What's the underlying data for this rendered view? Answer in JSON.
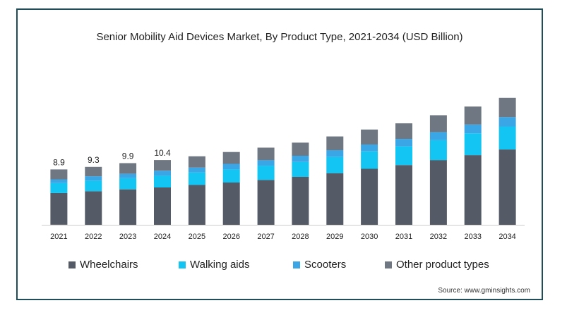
{
  "chart_data": {
    "type": "bar",
    "stacked": true,
    "title": "Senior Mobility Aid Devices Market, By Product Type, 2021-2034 (USD Billion)",
    "xlabel": "",
    "ylabel": "",
    "grid": false,
    "legend_position": "bottom",
    "categories": [
      "2021",
      "2022",
      "2023",
      "2024",
      "2025",
      "2026",
      "2027",
      "2028",
      "2029",
      "2030",
      "2031",
      "2032",
      "2033",
      "2034"
    ],
    "totals_labels": [
      "8.9",
      "9.3",
      "9.9",
      "10.4",
      "",
      "",
      "",
      "",
      "",
      "",
      "",
      "",
      "",
      ""
    ],
    "ylim": [
      0,
      30
    ],
    "series": [
      {
        "name": "Wheelchairs",
        "color": "#555b66",
        "values": [
          5.1,
          5.4,
          5.7,
          6.0,
          6.4,
          6.8,
          7.2,
          7.7,
          8.3,
          9.0,
          9.6,
          10.4,
          11.2,
          12.1
        ]
      },
      {
        "name": "Walking aids",
        "color": "#12c5f2",
        "values": [
          1.6,
          1.7,
          1.8,
          1.9,
          2.0,
          2.1,
          2.3,
          2.4,
          2.6,
          2.8,
          3.0,
          3.2,
          3.5,
          3.7
        ]
      },
      {
        "name": "Scooters",
        "color": "#3aa6e6",
        "values": [
          0.6,
          0.7,
          0.7,
          0.8,
          0.8,
          0.9,
          0.9,
          1.0,
          1.1,
          1.1,
          1.2,
          1.3,
          1.4,
          1.5
        ]
      },
      {
        "name": "Other product types",
        "color": "#6f7782",
        "values": [
          1.6,
          1.5,
          1.7,
          1.7,
          1.8,
          1.9,
          2.0,
          2.1,
          2.2,
          2.4,
          2.5,
          2.7,
          2.9,
          3.1
        ]
      }
    ]
  },
  "source": "Source: www.gminsights.com"
}
